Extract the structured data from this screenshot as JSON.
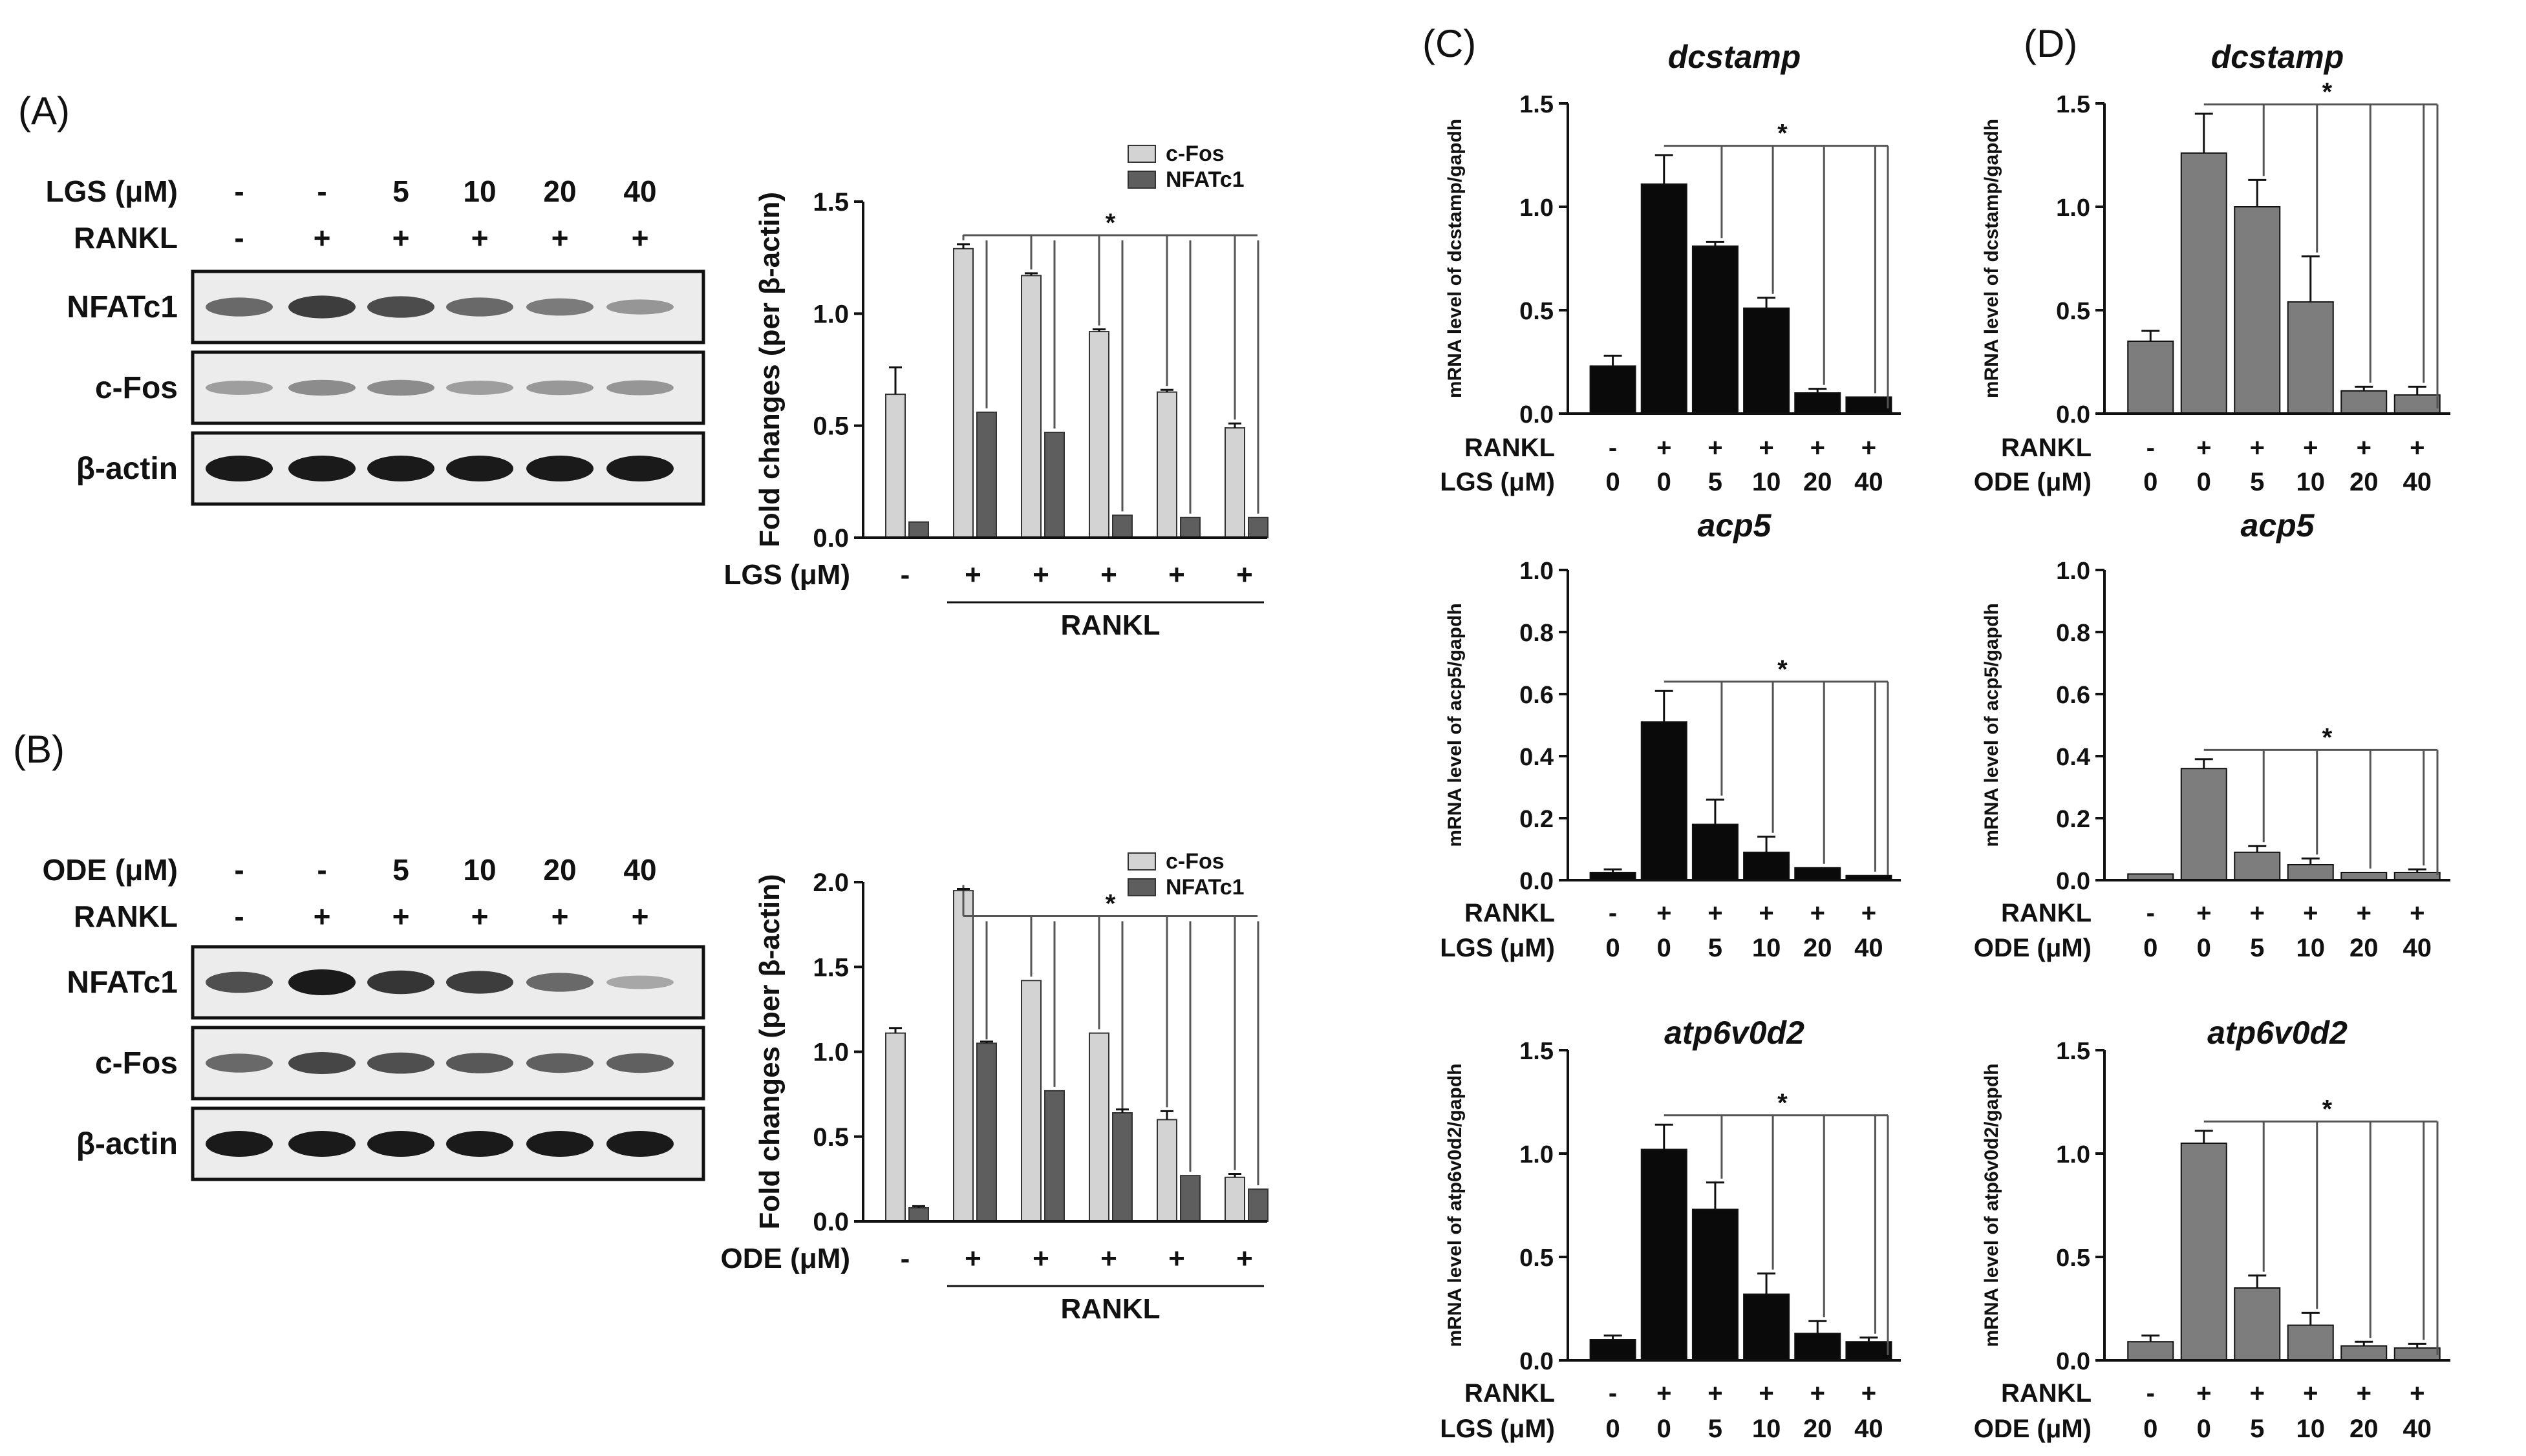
{
  "colors": {
    "black_bar": "#0a0a0a",
    "gray_bar": "#7d7d7d",
    "cfos": "#d3d3d3",
    "nfatc1": "#5e5e5e",
    "axis": "#111111",
    "bracket": "#555555"
  },
  "blots": [
    {
      "panel": "(A)",
      "treatment": "LGS (μM)",
      "treat_values": [
        "-",
        "-",
        "5",
        "10",
        "20",
        "40"
      ],
      "rankl_label": "RANKL",
      "rankl_values": [
        "-",
        "+",
        "+",
        "+",
        "+",
        "+"
      ],
      "bands": [
        "NFATc1",
        "c-Fos",
        "β-actin"
      ],
      "intensity": [
        [
          0.55,
          0.8,
          0.72,
          0.55,
          0.45,
          0.3
        ],
        [
          0.25,
          0.35,
          0.35,
          0.25,
          0.28,
          0.3
        ],
        [
          1,
          1,
          1,
          1,
          1,
          1
        ]
      ]
    },
    {
      "panel": "(B)",
      "treatment": "ODE (μM)",
      "treat_values": [
        "-",
        "-",
        "5",
        "10",
        "20",
        "40"
      ],
      "rankl_label": "RANKL",
      "rankl_values": [
        "-",
        "+",
        "+",
        "+",
        "+",
        "+"
      ],
      "bands": [
        "NFATc1",
        "c-Fos",
        "β-actin"
      ],
      "intensity": [
        [
          0.7,
          1,
          0.85,
          0.8,
          0.55,
          0.2
        ],
        [
          0.55,
          0.75,
          0.7,
          0.65,
          0.6,
          0.6
        ],
        [
          1,
          1,
          1,
          1,
          1,
          1
        ]
      ]
    }
  ],
  "chart_data": [
    {
      "id": "A-bar",
      "type": "bar",
      "ylabel": "Fold changes (per β-actin)",
      "ylim": [
        0,
        1.5
      ],
      "yticks": [
        "0.0",
        "0.5",
        "1.0",
        "1.5"
      ],
      "series": [
        {
          "name": "c-Fos",
          "values": [
            0.64,
            1.29,
            1.17,
            0.92,
            0.65,
            0.49
          ],
          "errors": [
            0.12,
            0.02,
            0.01,
            0.01,
            0.01,
            0.02
          ]
        },
        {
          "name": "NFATc1",
          "values": [
            0.07,
            0.56,
            0.47,
            0.1,
            0.09,
            0.09
          ],
          "errors": [
            0,
            0,
            0,
            0,
            0,
            0
          ]
        }
      ],
      "x_label": "LGS (μM)",
      "x_ticks": [
        "-",
        "+",
        "+",
        "+",
        "+",
        "+"
      ],
      "group_label": "RANKL",
      "sig": "*"
    },
    {
      "id": "B-bar",
      "type": "bar",
      "ylabel": "Fold changes (per β-actin)",
      "ylim": [
        0,
        2.0
      ],
      "yticks": [
        "0.0",
        "0.5",
        "1.0",
        "1.5",
        "2.0"
      ],
      "series": [
        {
          "name": "c-Fos",
          "values": [
            1.11,
            1.95,
            1.42,
            1.11,
            0.6,
            0.26
          ],
          "errors": [
            0.03,
            0.01,
            0,
            0,
            0.05,
            0.02
          ]
        },
        {
          "name": "NFATc1",
          "values": [
            0.08,
            1.05,
            0.77,
            0.64,
            0.27,
            0.19
          ],
          "errors": [
            0.01,
            0.01,
            0,
            0.02,
            0,
            0
          ]
        }
      ],
      "x_label": "ODE (μM)",
      "x_ticks": [
        "-",
        "+",
        "+",
        "+",
        "+",
        "+"
      ],
      "group_label": "RANKL",
      "sig": "*"
    },
    {
      "id": "C1",
      "panel": "(C)",
      "type": "bar",
      "title": "dcstamp",
      "ylabel": "mRNA level of dcstamp/gapdh",
      "ylim": [
        0,
        1.5
      ],
      "yticks": [
        "0.0",
        "0.5",
        "1.0",
        "1.5"
      ],
      "values": [
        0.23,
        1.11,
        0.81,
        0.51,
        0.1,
        0.08
      ],
      "errors": [
        0.05,
        0.14,
        0.02,
        0.05,
        0.02,
        0
      ],
      "categories": [
        "0",
        "0",
        "5",
        "10",
        "20",
        "40"
      ],
      "rankl": [
        "-",
        "+",
        "+",
        "+",
        "+",
        "+"
      ],
      "treat": "LGS (μM)",
      "sig": "*"
    },
    {
      "id": "C2",
      "type": "bar",
      "title": "acp5",
      "ylabel": "mRNA level of acp5/gapdh",
      "ylim": [
        0,
        1.0
      ],
      "yticks": [
        "0.0",
        "0.2",
        "0.4",
        "0.6",
        "0.8",
        "1.0"
      ],
      "values": [
        0.025,
        0.51,
        0.18,
        0.09,
        0.04,
        0.015
      ],
      "errors": [
        0.01,
        0.1,
        0.08,
        0.05,
        0,
        0
      ],
      "categories": [
        "0",
        "0",
        "5",
        "10",
        "20",
        "40"
      ],
      "rankl": [
        "-",
        "+",
        "+",
        "+",
        "+",
        "+"
      ],
      "treat": "LGS (μM)",
      "sig": "*"
    },
    {
      "id": "C3",
      "type": "bar",
      "title": "atp6v0d2",
      "ylabel": "mRNA level of atp6v0d2/gapdh",
      "ylim": [
        0,
        1.5
      ],
      "yticks": [
        "0.0",
        "0.5",
        "1.0",
        "1.5"
      ],
      "values": [
        0.1,
        1.02,
        0.73,
        0.32,
        0.13,
        0.09
      ],
      "errors": [
        0.02,
        0.12,
        0.13,
        0.1,
        0.06,
        0.02
      ],
      "categories": [
        "0",
        "0",
        "5",
        "10",
        "20",
        "40"
      ],
      "rankl": [
        "-",
        "+",
        "+",
        "+",
        "+",
        "+"
      ],
      "treat": "LGS (μM)",
      "sig": "*"
    },
    {
      "id": "D1",
      "panel": "(D)",
      "type": "bar",
      "title": "dcstamp",
      "ylabel": "mRNA level of dcstamp/gapdh",
      "ylim": [
        0,
        1.5
      ],
      "yticks": [
        "0.0",
        "0.5",
        "1.0",
        "1.5"
      ],
      "values": [
        0.35,
        1.26,
        1.0,
        0.54,
        0.11,
        0.09
      ],
      "errors": [
        0.05,
        0.19,
        0.13,
        0.22,
        0.02,
        0.04
      ],
      "categories": [
        "0",
        "0",
        "5",
        "10",
        "20",
        "40"
      ],
      "rankl": [
        "-",
        "+",
        "+",
        "+",
        "+",
        "+"
      ],
      "treat": "ODE (μM)",
      "sig": "*"
    },
    {
      "id": "D2",
      "type": "bar",
      "title": "acp5",
      "ylabel": "mRNA level of acp5/gapdh",
      "ylim": [
        0,
        1.0
      ],
      "yticks": [
        "0.0",
        "0.2",
        "0.4",
        "0.6",
        "0.8",
        "1.0"
      ],
      "values": [
        0.02,
        0.36,
        0.09,
        0.05,
        0.025,
        0.025
      ],
      "errors": [
        0,
        0.03,
        0.02,
        0.02,
        0,
        0.01
      ],
      "categories": [
        "0",
        "0",
        "5",
        "10",
        "20",
        "40"
      ],
      "rankl": [
        "-",
        "+",
        "+",
        "+",
        "+",
        "+"
      ],
      "treat": "ODE (μM)",
      "sig": "*"
    },
    {
      "id": "D3",
      "type": "bar",
      "title": "atp6v0d2",
      "ylabel": "mRNA level of atp6v0d2/gapdh",
      "ylim": [
        0,
        1.5
      ],
      "yticks": [
        "0.0",
        "0.5",
        "1.0",
        "1.5"
      ],
      "values": [
        0.09,
        1.05,
        0.35,
        0.17,
        0.07,
        0.06
      ],
      "errors": [
        0.03,
        0.06,
        0.06,
        0.06,
        0.02,
        0.02
      ],
      "categories": [
        "0",
        "0",
        "5",
        "10",
        "20",
        "40"
      ],
      "rankl": [
        "-",
        "+",
        "+",
        "+",
        "+",
        "+"
      ],
      "treat": "ODE (μM)",
      "sig": "*"
    }
  ]
}
